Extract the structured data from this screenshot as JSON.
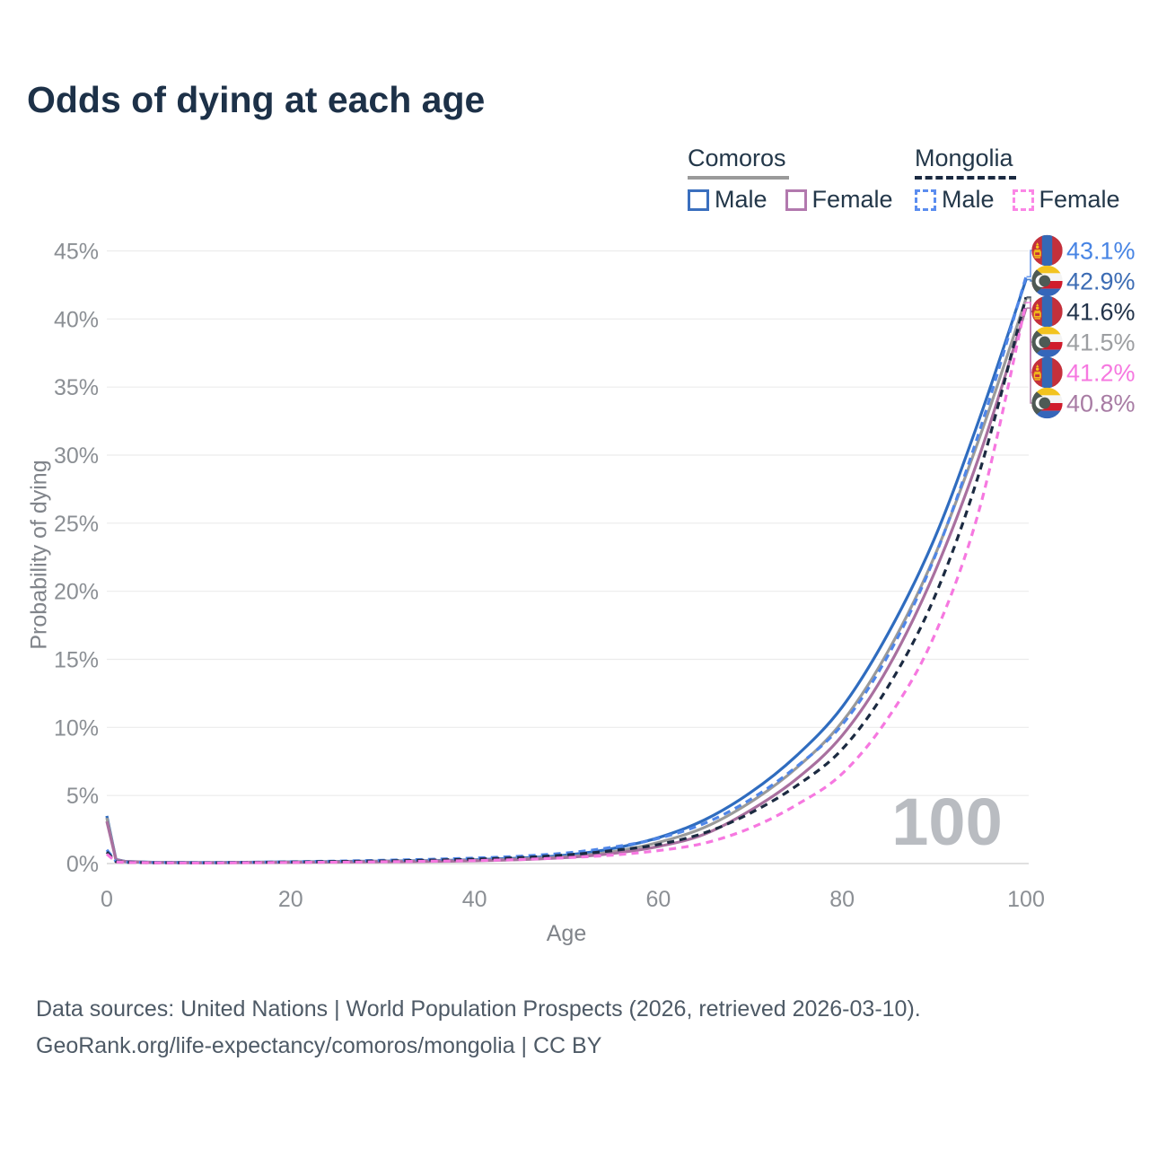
{
  "title": "Odds of dying at each age",
  "legend": {
    "groups": [
      {
        "name": "Comoros",
        "line_style": "solid",
        "underline_color": "#9a9a9a",
        "items": [
          {
            "label": "Male",
            "color": "#3a6fbe",
            "style": "solid"
          },
          {
            "label": "Female",
            "color": "#b279ae",
            "style": "solid"
          }
        ]
      },
      {
        "name": "Mongolia",
        "line_style": "dashed",
        "underline_color": "#1b2a41",
        "items": [
          {
            "label": "Male",
            "color": "#5b8def",
            "style": "dashed"
          },
          {
            "label": "Female",
            "color": "#fb86e6",
            "style": "dashed"
          }
        ]
      }
    ]
  },
  "chart_data": {
    "type": "line",
    "title": "Odds of dying at each age",
    "xlabel": "Age",
    "ylabel": "Probability of dying",
    "x_ticks": [
      0,
      20,
      40,
      60,
      80,
      100
    ],
    "y_ticks": [
      "0%",
      "5%",
      "10%",
      "15%",
      "20%",
      "25%",
      "30%",
      "35%",
      "40%",
      "45%"
    ],
    "xlim": [
      0,
      100
    ],
    "ylim": [
      0,
      45
    ],
    "grid": true,
    "legend_position": "top-right",
    "watermark": "100",
    "ages": [
      0,
      1,
      2,
      5,
      10,
      15,
      20,
      25,
      30,
      35,
      40,
      45,
      50,
      55,
      60,
      65,
      70,
      75,
      80,
      85,
      90,
      95,
      100
    ],
    "series": [
      {
        "name": "Mongolia Male",
        "country": "Mongolia",
        "sex": "male",
        "flag": "mongolia",
        "dashed": true,
        "color": "#4f86e8",
        "label_color": "#4784e4",
        "end_label": "43.1%",
        "values": [
          1.0,
          0.16,
          0.1,
          0.07,
          0.06,
          0.09,
          0.13,
          0.18,
          0.24,
          0.31,
          0.4,
          0.54,
          0.78,
          1.2,
          1.85,
          2.95,
          4.7,
          7.1,
          10.2,
          15.3,
          22.4,
          31.9,
          43.1
        ]
      },
      {
        "name": "Comoros Male",
        "country": "Comoros",
        "sex": "male",
        "flag": "comoros",
        "dashed": false,
        "color": "#2f6cbf",
        "label_color": "#3c6cb4",
        "end_label": "42.9%",
        "values": [
          3.5,
          0.3,
          0.16,
          0.09,
          0.07,
          0.09,
          0.12,
          0.15,
          0.18,
          0.22,
          0.28,
          0.4,
          0.62,
          1.1,
          1.9,
          3.2,
          5.2,
          7.9,
          11.5,
          16.9,
          23.8,
          32.8,
          42.9
        ]
      },
      {
        "name": "Mongolia Both Sexes",
        "country": "Mongolia",
        "sex": "both",
        "flag": "mongolia",
        "dashed": true,
        "color": "#1b2a41",
        "label_color": "#22334a",
        "end_label": "41.6%",
        "values": [
          0.85,
          0.14,
          0.09,
          0.06,
          0.05,
          0.08,
          0.11,
          0.15,
          0.19,
          0.25,
          0.32,
          0.44,
          0.63,
          0.95,
          1.4,
          2.25,
          3.7,
          5.7,
          8.4,
          13.0,
          19.5,
          28.9,
          41.6
        ]
      },
      {
        "name": "Comoros Both Sexes",
        "country": "Comoros",
        "sex": "both",
        "flag": "comoros",
        "dashed": false,
        "color": "#9a9a9a",
        "label_color": "#9c9ea1",
        "end_label": "41.5%",
        "values": [
          3.35,
          0.28,
          0.15,
          0.08,
          0.06,
          0.08,
          0.1,
          0.13,
          0.16,
          0.19,
          0.24,
          0.34,
          0.5,
          0.87,
          1.55,
          2.65,
          4.5,
          7.0,
          10.4,
          15.6,
          22.5,
          31.4,
          41.5
        ]
      },
      {
        "name": "Mongolia Female",
        "country": "Mongolia",
        "sex": "female",
        "flag": "mongolia",
        "dashed": true,
        "color": "#f678e0",
        "label_color": "#f678e0",
        "end_label": "41.2%",
        "values": [
          0.7,
          0.12,
          0.08,
          0.05,
          0.04,
          0.06,
          0.08,
          0.1,
          0.13,
          0.17,
          0.22,
          0.3,
          0.43,
          0.62,
          0.95,
          1.5,
          2.6,
          4.3,
          6.6,
          10.7,
          16.7,
          26.2,
          41.2
        ]
      },
      {
        "name": "Comoros Female",
        "country": "Comoros",
        "sex": "female",
        "flag": "comoros",
        "dashed": false,
        "color": "#a9709f",
        "label_color": "#a87ca4",
        "end_label": "40.8%",
        "values": [
          3.1,
          0.27,
          0.14,
          0.08,
          0.06,
          0.07,
          0.09,
          0.11,
          0.13,
          0.16,
          0.2,
          0.29,
          0.44,
          0.74,
          1.25,
          2.15,
          3.9,
          6.2,
          9.4,
          14.4,
          21.3,
          30.1,
          40.8
        ]
      }
    ]
  },
  "footer": {
    "line1": "Data sources: United Nations | World Population Prospects (2026, retrieved 2026-03-10).",
    "line2": "GeoRank.org/life-expectancy/comoros/mongolia | CC BY"
  }
}
